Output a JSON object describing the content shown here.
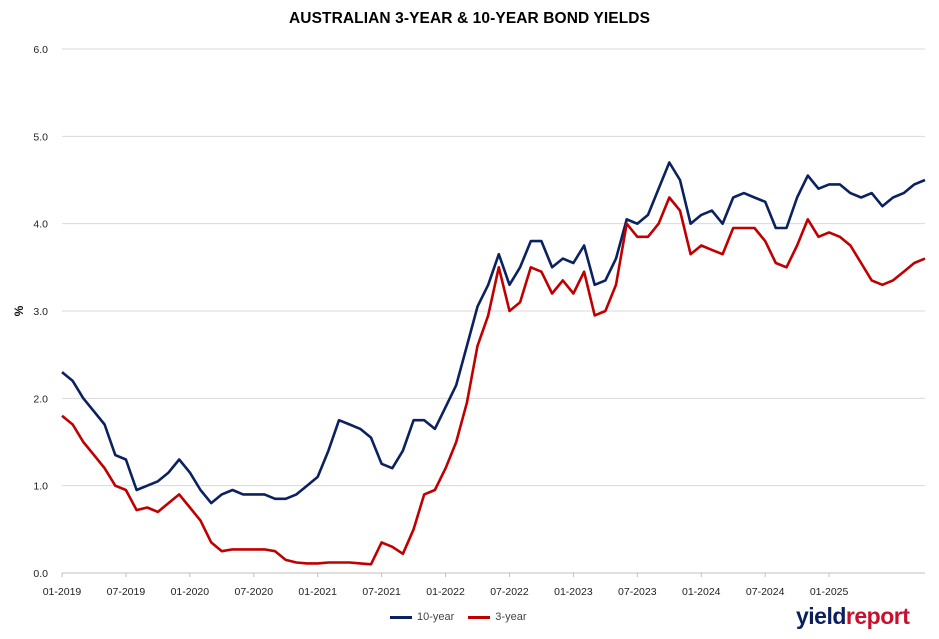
{
  "chart_data": {
    "type": "line",
    "title": "AUSTRALIAN 3-YEAR & 10-YEAR BOND YIELDS",
    "ylabel": "%",
    "ylim": [
      0,
      6
    ],
    "yticks": [
      "0.0",
      "1.0",
      "2.0",
      "3.0",
      "4.0",
      "5.0",
      "6.0"
    ],
    "xticks": [
      "01-2019",
      "07-2019",
      "01-2020",
      "07-2020",
      "01-2021",
      "07-2021",
      "01-2022",
      "07-2022",
      "01-2023",
      "07-2023",
      "01-2024",
      "07-2024",
      "01-2025"
    ],
    "xrange": [
      "2019-01",
      "2025-10"
    ],
    "grid": true,
    "legend_position": "bottom",
    "series": [
      {
        "name": "10-year",
        "color": "#0b2160",
        "points": [
          [
            "2019-01",
            2.3
          ],
          [
            "2019-02",
            2.2
          ],
          [
            "2019-03",
            2.0
          ],
          [
            "2019-04",
            1.85
          ],
          [
            "2019-05",
            1.7
          ],
          [
            "2019-06",
            1.35
          ],
          [
            "2019-07",
            1.3
          ],
          [
            "2019-08",
            0.95
          ],
          [
            "2019-09",
            1.0
          ],
          [
            "2019-10",
            1.05
          ],
          [
            "2019-11",
            1.15
          ],
          [
            "2019-12",
            1.3
          ],
          [
            "2020-01",
            1.15
          ],
          [
            "2020-02",
            0.95
          ],
          [
            "2020-03",
            0.8
          ],
          [
            "2020-04",
            0.9
          ],
          [
            "2020-05",
            0.95
          ],
          [
            "2020-06",
            0.9
          ],
          [
            "2020-07",
            0.9
          ],
          [
            "2020-08",
            0.9
          ],
          [
            "2020-09",
            0.85
          ],
          [
            "2020-10",
            0.85
          ],
          [
            "2020-11",
            0.9
          ],
          [
            "2020-12",
            1.0
          ],
          [
            "2021-01",
            1.1
          ],
          [
            "2021-02",
            1.4
          ],
          [
            "2021-03",
            1.75
          ],
          [
            "2021-04",
            1.7
          ],
          [
            "2021-05",
            1.65
          ],
          [
            "2021-06",
            1.55
          ],
          [
            "2021-07",
            1.25
          ],
          [
            "2021-08",
            1.2
          ],
          [
            "2021-09",
            1.4
          ],
          [
            "2021-10",
            1.75
          ],
          [
            "2021-11",
            1.75
          ],
          [
            "2021-12",
            1.65
          ],
          [
            "2022-01",
            1.9
          ],
          [
            "2022-02",
            2.15
          ],
          [
            "2022-03",
            2.6
          ],
          [
            "2022-04",
            3.05
          ],
          [
            "2022-05",
            3.3
          ],
          [
            "2022-06",
            3.65
          ],
          [
            "2022-07",
            3.3
          ],
          [
            "2022-08",
            3.5
          ],
          [
            "2022-09",
            3.8
          ],
          [
            "2022-10",
            3.8
          ],
          [
            "2022-11",
            3.5
          ],
          [
            "2022-12",
            3.6
          ],
          [
            "2023-01",
            3.55
          ],
          [
            "2023-02",
            3.75
          ],
          [
            "2023-03",
            3.3
          ],
          [
            "2023-04",
            3.35
          ],
          [
            "2023-05",
            3.6
          ],
          [
            "2023-06",
            4.05
          ],
          [
            "2023-07",
            4.0
          ],
          [
            "2023-08",
            4.1
          ],
          [
            "2023-09",
            4.4
          ],
          [
            "2023-10",
            4.7
          ],
          [
            "2023-11",
            4.5
          ],
          [
            "2023-12",
            4.0
          ],
          [
            "2024-01",
            4.1
          ],
          [
            "2024-02",
            4.15
          ],
          [
            "2024-03",
            4.0
          ],
          [
            "2024-04",
            4.3
          ],
          [
            "2024-05",
            4.35
          ],
          [
            "2024-06",
            4.3
          ],
          [
            "2024-07",
            4.25
          ],
          [
            "2024-08",
            3.95
          ],
          [
            "2024-09",
            3.95
          ],
          [
            "2024-10",
            4.3
          ],
          [
            "2024-11",
            4.55
          ],
          [
            "2024-12",
            4.4
          ],
          [
            "2025-01",
            4.45
          ],
          [
            "2025-02",
            4.45
          ],
          [
            "2025-03",
            4.35
          ],
          [
            "2025-04",
            4.3
          ],
          [
            "2025-05",
            4.35
          ],
          [
            "2025-06",
            4.2
          ],
          [
            "2025-07",
            4.3
          ],
          [
            "2025-08",
            4.35
          ],
          [
            "2025-09",
            4.45
          ],
          [
            "2025-10",
            4.5
          ]
        ]
      },
      {
        "name": "3-year",
        "color": "#c00000",
        "points": [
          [
            "2019-01",
            1.8
          ],
          [
            "2019-02",
            1.7
          ],
          [
            "2019-03",
            1.5
          ],
          [
            "2019-04",
            1.35
          ],
          [
            "2019-05",
            1.2
          ],
          [
            "2019-06",
            1.0
          ],
          [
            "2019-07",
            0.95
          ],
          [
            "2019-08",
            0.72
          ],
          [
            "2019-09",
            0.75
          ],
          [
            "2019-10",
            0.7
          ],
          [
            "2019-11",
            0.8
          ],
          [
            "2019-12",
            0.9
          ],
          [
            "2020-01",
            0.75
          ],
          [
            "2020-02",
            0.6
          ],
          [
            "2020-03",
            0.35
          ],
          [
            "2020-04",
            0.25
          ],
          [
            "2020-05",
            0.27
          ],
          [
            "2020-06",
            0.27
          ],
          [
            "2020-07",
            0.27
          ],
          [
            "2020-08",
            0.27
          ],
          [
            "2020-09",
            0.25
          ],
          [
            "2020-10",
            0.15
          ],
          [
            "2020-11",
            0.12
          ],
          [
            "2020-12",
            0.11
          ],
          [
            "2021-01",
            0.11
          ],
          [
            "2021-02",
            0.12
          ],
          [
            "2021-03",
            0.12
          ],
          [
            "2021-04",
            0.12
          ],
          [
            "2021-05",
            0.11
          ],
          [
            "2021-06",
            0.1
          ],
          [
            "2021-07",
            0.35
          ],
          [
            "2021-08",
            0.3
          ],
          [
            "2021-09",
            0.22
          ],
          [
            "2021-10",
            0.5
          ],
          [
            "2021-11",
            0.9
          ],
          [
            "2021-12",
            0.95
          ],
          [
            "2022-01",
            1.2
          ],
          [
            "2022-02",
            1.5
          ],
          [
            "2022-03",
            1.95
          ],
          [
            "2022-04",
            2.6
          ],
          [
            "2022-05",
            2.95
          ],
          [
            "2022-06",
            3.5
          ],
          [
            "2022-07",
            3.0
          ],
          [
            "2022-08",
            3.1
          ],
          [
            "2022-09",
            3.5
          ],
          [
            "2022-10",
            3.45
          ],
          [
            "2022-11",
            3.2
          ],
          [
            "2022-12",
            3.35
          ],
          [
            "2023-01",
            3.2
          ],
          [
            "2023-02",
            3.45
          ],
          [
            "2023-03",
            2.95
          ],
          [
            "2023-04",
            3.0
          ],
          [
            "2023-05",
            3.3
          ],
          [
            "2023-06",
            4.0
          ],
          [
            "2023-07",
            3.85
          ],
          [
            "2023-08",
            3.85
          ],
          [
            "2023-09",
            4.0
          ],
          [
            "2023-10",
            4.3
          ],
          [
            "2023-11",
            4.15
          ],
          [
            "2023-12",
            3.65
          ],
          [
            "2024-01",
            3.75
          ],
          [
            "2024-02",
            3.7
          ],
          [
            "2024-03",
            3.65
          ],
          [
            "2024-04",
            3.95
          ],
          [
            "2024-05",
            3.95
          ],
          [
            "2024-06",
            3.95
          ],
          [
            "2024-07",
            3.8
          ],
          [
            "2024-08",
            3.55
          ],
          [
            "2024-09",
            3.5
          ],
          [
            "2024-10",
            3.75
          ],
          [
            "2024-11",
            4.05
          ],
          [
            "2024-12",
            3.85
          ],
          [
            "2025-01",
            3.9
          ],
          [
            "2025-02",
            3.85
          ],
          [
            "2025-03",
            3.75
          ],
          [
            "2025-04",
            3.55
          ],
          [
            "2025-05",
            3.35
          ],
          [
            "2025-06",
            3.3
          ],
          [
            "2025-07",
            3.35
          ],
          [
            "2025-08",
            3.45
          ],
          [
            "2025-09",
            3.55
          ],
          [
            "2025-10",
            3.6
          ]
        ]
      }
    ]
  },
  "logo": {
    "part1": "yield",
    "part2": "report"
  }
}
